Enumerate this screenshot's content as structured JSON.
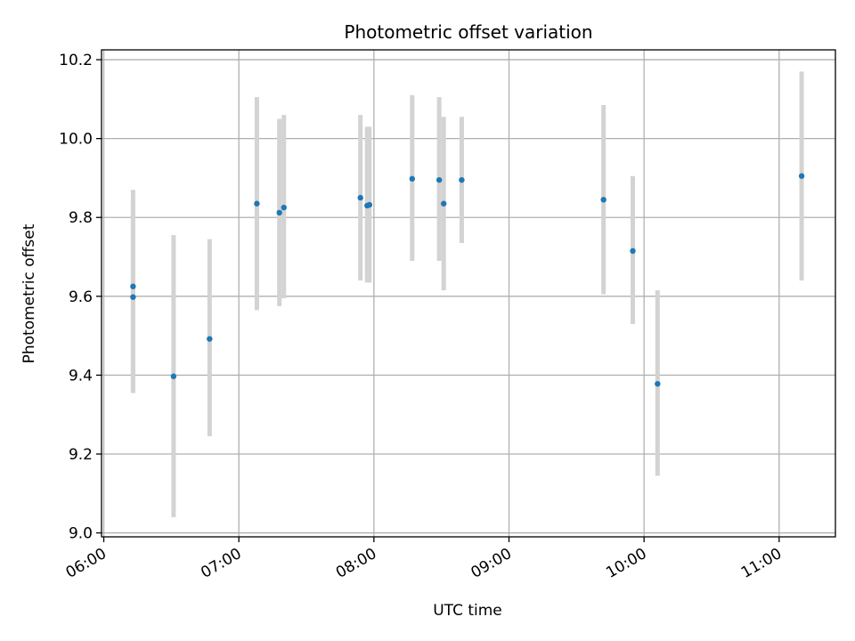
{
  "chart_data": {
    "type": "scatter",
    "title": "Photometric offset variation",
    "xlabel": "UTC time",
    "ylabel": "Photometric offset",
    "x_ticks": [
      "06:00",
      "07:00",
      "08:00",
      "09:00",
      "10:00",
      "11:00"
    ],
    "y_ticks": [
      "9.0",
      "9.2",
      "9.4",
      "9.6",
      "9.8",
      "10.0",
      "10.2"
    ],
    "xlim": [
      "05:59",
      "11:25"
    ],
    "ylim": [
      8.99,
      10.225
    ],
    "grid": true,
    "colors": {
      "point": "#1f77b4",
      "errorbar": "#d3d3d3",
      "grid": "#b0b0b0"
    },
    "series": [
      {
        "points": [
          {
            "t": "06:13",
            "y": 9.625,
            "err_lo": 9.355,
            "err_hi": 9.87
          },
          {
            "t": "06:13",
            "y": 9.598,
            "err_lo": 9.355,
            "err_hi": 9.84
          },
          {
            "t": "06:31",
            "y": 9.397,
            "err_lo": 9.04,
            "err_hi": 9.755
          },
          {
            "t": "06:47",
            "y": 9.492,
            "err_lo": 9.245,
            "err_hi": 9.745
          },
          {
            "t": "07:08",
            "y": 9.835,
            "err_lo": 9.565,
            "err_hi": 10.105
          },
          {
            "t": "07:18",
            "y": 9.812,
            "err_lo": 9.575,
            "err_hi": 10.05
          },
          {
            "t": "07:20",
            "y": 9.825,
            "err_lo": 9.595,
            "err_hi": 10.06
          },
          {
            "t": "07:54",
            "y": 9.85,
            "err_lo": 9.64,
            "err_hi": 10.06
          },
          {
            "t": "07:57",
            "y": 9.83,
            "err_lo": 9.635,
            "err_hi": 10.03
          },
          {
            "t": "07:58",
            "y": 9.832,
            "err_lo": 9.635,
            "err_hi": 10.03
          },
          {
            "t": "08:17",
            "y": 9.898,
            "err_lo": 9.69,
            "err_hi": 10.11
          },
          {
            "t": "08:29",
            "y": 9.895,
            "err_lo": 9.69,
            "err_hi": 10.105
          },
          {
            "t": "08:31",
            "y": 9.835,
            "err_lo": 9.615,
            "err_hi": 10.055
          },
          {
            "t": "08:39",
            "y": 9.895,
            "err_lo": 9.735,
            "err_hi": 10.055
          },
          {
            "t": "09:42",
            "y": 9.845,
            "err_lo": 9.605,
            "err_hi": 10.085
          },
          {
            "t": "09:55",
            "y": 9.715,
            "err_lo": 9.53,
            "err_hi": 9.905
          },
          {
            "t": "10:06",
            "y": 9.378,
            "err_lo": 9.145,
            "err_hi": 9.615
          },
          {
            "t": "11:10",
            "y": 9.905,
            "err_lo": 9.64,
            "err_hi": 10.17
          }
        ]
      }
    ]
  }
}
